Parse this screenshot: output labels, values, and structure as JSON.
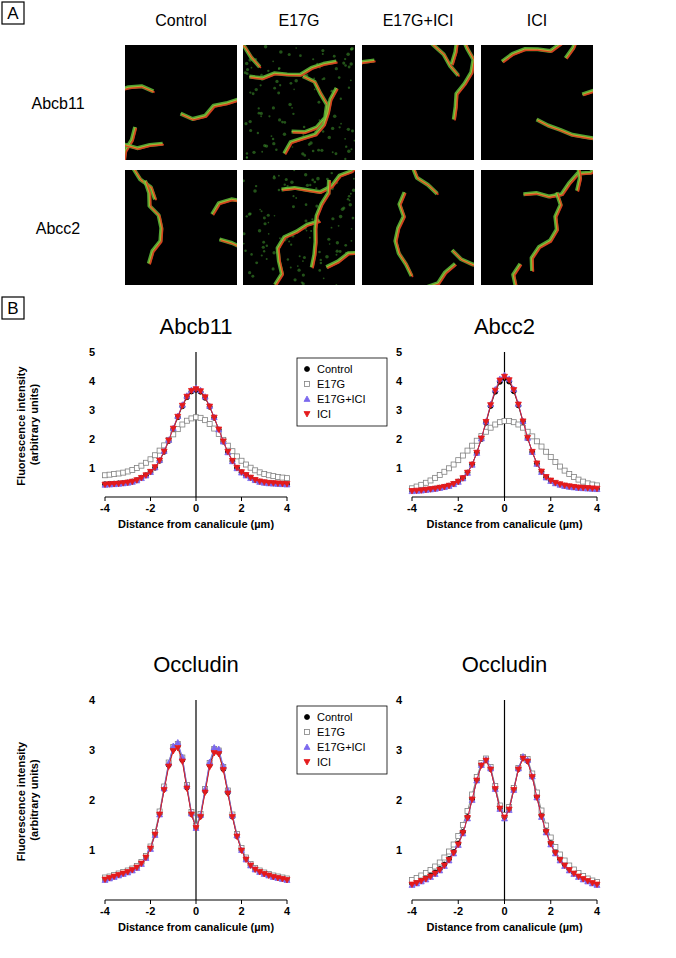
{
  "panel_a": {
    "label": "A",
    "columns": [
      "Control",
      "E17G",
      "E17G+ICI",
      "ICI"
    ],
    "rows": [
      "Abcb11",
      "Abcc2"
    ]
  },
  "panel_b": {
    "label": "B"
  },
  "chart_data": [
    {
      "type": "line",
      "title": "Abcb11",
      "x_label": "Distance from canalicule (µm)",
      "y_label": "Fluorescence intensity (arbitrary units)",
      "legend": "right",
      "xlim": [
        -4,
        4
      ],
      "xticks": [
        -4,
        -2,
        0,
        2,
        4
      ],
      "ylim": [
        0,
        5
      ],
      "yticks": [
        1,
        2,
        3,
        4,
        5
      ],
      "x": [
        -4,
        -3.8,
        -3.6,
        -3.4,
        -3.2,
        -3,
        -2.8,
        -2.6,
        -2.4,
        -2.2,
        -2,
        -1.8,
        -1.6,
        -1.4,
        -1.2,
        -1,
        -0.8,
        -0.6,
        -0.4,
        -0.2,
        0,
        0.2,
        0.4,
        0.6,
        0.8,
        1,
        1.2,
        1.4,
        1.6,
        1.8,
        2,
        2.2,
        2.4,
        2.6,
        2.8,
        3,
        3.2,
        3.4,
        3.6,
        3.8,
        4
      ],
      "series": [
        {
          "name": "Control",
          "color": "#000000",
          "marker": "circle",
          "values": [
            0.44,
            0.45,
            0.46,
            0.47,
            0.48,
            0.5,
            0.53,
            0.58,
            0.66,
            0.75,
            0.86,
            1.01,
            1.25,
            1.56,
            1.93,
            2.34,
            2.75,
            3.13,
            3.44,
            3.64,
            3.7,
            3.63,
            3.42,
            3.11,
            2.73,
            2.32,
            1.91,
            1.55,
            1.24,
            1.0,
            0.85,
            0.75,
            0.66,
            0.58,
            0.53,
            0.5,
            0.48,
            0.47,
            0.46,
            0.45,
            0.44
          ]
        },
        {
          "name": "E17G",
          "color": "#808080",
          "marker": "square",
          "values": [
            0.75,
            0.77,
            0.79,
            0.81,
            0.84,
            0.88,
            0.93,
            1.0,
            1.08,
            1.18,
            1.3,
            1.44,
            1.6,
            1.78,
            1.97,
            2.16,
            2.34,
            2.5,
            2.63,
            2.71,
            2.75,
            2.73,
            2.65,
            2.52,
            2.36,
            2.17,
            1.97,
            1.77,
            1.58,
            1.4,
            1.25,
            1.12,
            1.01,
            0.92,
            0.85,
            0.79,
            0.75,
            0.72,
            0.69,
            0.67,
            0.65
          ]
        },
        {
          "name": "E17G+ICI",
          "color": "#7b68ee",
          "marker": "triangle-up",
          "values": [
            0.42,
            0.43,
            0.44,
            0.45,
            0.47,
            0.49,
            0.52,
            0.57,
            0.65,
            0.74,
            0.86,
            1.02,
            1.27,
            1.59,
            1.97,
            2.38,
            2.79,
            3.18,
            3.49,
            3.69,
            3.76,
            3.68,
            3.46,
            3.14,
            2.75,
            2.33,
            1.91,
            1.54,
            1.23,
            0.99,
            0.84,
            0.74,
            0.65,
            0.58,
            0.52,
            0.49,
            0.47,
            0.46,
            0.45,
            0.44,
            0.43
          ]
        },
        {
          "name": "ICI",
          "color": "#e41a1c",
          "marker": "triangle-down",
          "values": [
            0.43,
            0.44,
            0.45,
            0.46,
            0.48,
            0.5,
            0.53,
            0.58,
            0.66,
            0.75,
            0.87,
            1.03,
            1.26,
            1.57,
            1.95,
            2.36,
            2.77,
            3.15,
            3.46,
            3.66,
            3.72,
            3.65,
            3.44,
            3.12,
            2.74,
            2.33,
            1.92,
            1.56,
            1.25,
            1.01,
            0.86,
            0.76,
            0.67,
            0.59,
            0.54,
            0.51,
            0.49,
            0.48,
            0.47,
            0.46,
            0.45
          ]
        }
      ]
    },
    {
      "type": "line",
      "title": "Abcc2",
      "x_label": "Distance from canalicule (µm)",
      "xlim": [
        -4,
        4
      ],
      "xticks": [
        -4,
        -2,
        0,
        2,
        4
      ],
      "ylim": [
        0,
        5
      ],
      "yticks": [
        1,
        2,
        3,
        4,
        5
      ],
      "x": [
        -4,
        -3.8,
        -3.6,
        -3.4,
        -3.2,
        -3,
        -2.8,
        -2.6,
        -2.4,
        -2.2,
        -2,
        -1.8,
        -1.6,
        -1.4,
        -1.2,
        -1,
        -0.8,
        -0.6,
        -0.4,
        -0.2,
        0,
        0.2,
        0.4,
        0.6,
        0.8,
        1,
        1.2,
        1.4,
        1.6,
        1.8,
        2,
        2.2,
        2.4,
        2.6,
        2.8,
        3,
        3.2,
        3.4,
        3.6,
        3.8,
        4
      ],
      "series": [
        {
          "name": "Control",
          "color": "#000000",
          "marker": "circle",
          "values": [
            0.22,
            0.23,
            0.24,
            0.25,
            0.27,
            0.29,
            0.32,
            0.35,
            0.39,
            0.45,
            0.53,
            0.65,
            0.84,
            1.12,
            1.52,
            2.0,
            2.56,
            3.14,
            3.63,
            3.97,
            4.1,
            3.98,
            3.65,
            3.16,
            2.59,
            2.03,
            1.55,
            1.15,
            0.87,
            0.68,
            0.56,
            0.48,
            0.43,
            0.39,
            0.36,
            0.34,
            0.32,
            0.31,
            0.3,
            0.29,
            0.28
          ]
        },
        {
          "name": "E17G",
          "color": "#808080",
          "marker": "square",
          "values": [
            0.3,
            0.36,
            0.42,
            0.49,
            0.57,
            0.66,
            0.76,
            0.87,
            0.99,
            1.12,
            1.27,
            1.43,
            1.6,
            1.77,
            1.94,
            2.1,
            2.25,
            2.39,
            2.5,
            2.58,
            2.62,
            2.62,
            2.58,
            2.5,
            2.39,
            2.25,
            2.09,
            1.92,
            1.74,
            1.56,
            1.38,
            1.21,
            1.05,
            0.91,
            0.79,
            0.69,
            0.6,
            0.53,
            0.47,
            0.43,
            0.4
          ]
        },
        {
          "name": "E17G+ICI",
          "color": "#7b68ee",
          "marker": "triangle-up",
          "values": [
            0.2,
            0.21,
            0.22,
            0.24,
            0.26,
            0.28,
            0.31,
            0.34,
            0.38,
            0.44,
            0.52,
            0.64,
            0.83,
            1.11,
            1.52,
            2.02,
            2.6,
            3.2,
            3.71,
            4.07,
            4.2,
            4.07,
            3.72,
            3.21,
            2.62,
            2.04,
            1.55,
            1.14,
            0.86,
            0.67,
            0.55,
            0.47,
            0.42,
            0.38,
            0.35,
            0.33,
            0.31,
            0.3,
            0.29,
            0.28,
            0.27
          ]
        },
        {
          "name": "ICI",
          "color": "#e41a1c",
          "marker": "triangle-down",
          "values": [
            0.21,
            0.22,
            0.23,
            0.25,
            0.27,
            0.29,
            0.32,
            0.35,
            0.39,
            0.45,
            0.53,
            0.65,
            0.84,
            1.12,
            1.53,
            2.02,
            2.59,
            3.17,
            3.67,
            4.02,
            4.15,
            4.03,
            3.69,
            3.19,
            2.61,
            2.04,
            1.56,
            1.16,
            0.88,
            0.69,
            0.57,
            0.49,
            0.44,
            0.4,
            0.37,
            0.35,
            0.33,
            0.32,
            0.31,
            0.3,
            0.29
          ]
        }
      ]
    },
    {
      "type": "line",
      "title": "Occludin",
      "x_label": "Distance from canalicule (µm)",
      "y_label": "Fluorescence intensity (arbitrary units)",
      "legend": "right",
      "xlim": [
        -4,
        4
      ],
      "xticks": [
        -4,
        -2,
        0,
        2,
        4
      ],
      "ylim": [
        0,
        4
      ],
      "yticks": [
        1,
        2,
        3,
        4
      ],
      "x": [
        -4,
        -3.8,
        -3.6,
        -3.4,
        -3.2,
        -3,
        -2.8,
        -2.6,
        -2.4,
        -2.2,
        -2,
        -1.8,
        -1.6,
        -1.4,
        -1.2,
        -1,
        -0.8,
        -0.6,
        -0.4,
        -0.2,
        0,
        0.2,
        0.4,
        0.6,
        0.8,
        1,
        1.2,
        1.4,
        1.6,
        1.8,
        2,
        2.2,
        2.4,
        2.6,
        2.8,
        3,
        3.2,
        3.4,
        3.6,
        3.8,
        4
      ],
      "series": [
        {
          "name": "Control",
          "color": "#000000",
          "marker": "circle",
          "values": [
            0.42,
            0.45,
            0.48,
            0.51,
            0.54,
            0.57,
            0.61,
            0.66,
            0.74,
            0.86,
            1.04,
            1.32,
            1.72,
            2.22,
            2.7,
            3.02,
            3.08,
            2.8,
            2.25,
            1.72,
            1.45,
            1.68,
            2.18,
            2.7,
            2.98,
            2.95,
            2.62,
            2.15,
            1.67,
            1.28,
            1.0,
            0.82,
            0.7,
            0.62,
            0.57,
            0.53,
            0.5,
            0.47,
            0.45,
            0.43,
            0.41
          ]
        },
        {
          "name": "E17G",
          "color": "#808080",
          "marker": "square",
          "values": [
            0.45,
            0.47,
            0.5,
            0.53,
            0.56,
            0.59,
            0.63,
            0.68,
            0.76,
            0.88,
            1.07,
            1.36,
            1.77,
            2.27,
            2.75,
            3.06,
            3.12,
            2.85,
            2.3,
            1.76,
            1.48,
            1.72,
            2.22,
            2.74,
            3.02,
            2.99,
            2.66,
            2.19,
            1.71,
            1.32,
            1.04,
            0.85,
            0.72,
            0.64,
            0.59,
            0.55,
            0.52,
            0.49,
            0.47,
            0.45,
            0.43
          ]
        },
        {
          "name": "E17G+ICI",
          "color": "#7b68ee",
          "marker": "triangle-up",
          "values": [
            0.4,
            0.43,
            0.46,
            0.49,
            0.52,
            0.55,
            0.59,
            0.64,
            0.72,
            0.84,
            1.02,
            1.3,
            1.71,
            2.23,
            2.74,
            3.08,
            3.15,
            2.86,
            2.28,
            1.73,
            1.44,
            1.7,
            2.22,
            2.76,
            3.05,
            3.02,
            2.68,
            2.19,
            1.69,
            1.29,
            1.0,
            0.81,
            0.69,
            0.61,
            0.56,
            0.52,
            0.49,
            0.46,
            0.44,
            0.42,
            0.4
          ]
        },
        {
          "name": "ICI",
          "color": "#e41a1c",
          "marker": "triangle-down",
          "values": [
            0.41,
            0.44,
            0.47,
            0.5,
            0.53,
            0.56,
            0.6,
            0.65,
            0.73,
            0.85,
            1.03,
            1.31,
            1.71,
            2.2,
            2.67,
            2.98,
            3.04,
            2.77,
            2.23,
            1.71,
            1.44,
            1.66,
            2.15,
            2.66,
            2.94,
            2.92,
            2.6,
            2.13,
            1.66,
            1.27,
            0.99,
            0.81,
            0.69,
            0.61,
            0.56,
            0.52,
            0.49,
            0.46,
            0.44,
            0.42,
            0.4
          ]
        }
      ]
    },
    {
      "type": "line",
      "title": "Occludin",
      "x_label": "Distance from canalicule (µm)",
      "xlim": [
        -4,
        4
      ],
      "xticks": [
        -4,
        -2,
        0,
        2,
        4
      ],
      "ylim": [
        0,
        4
      ],
      "yticks": [
        1,
        2,
        3,
        4
      ],
      "x": [
        -4,
        -3.8,
        -3.6,
        -3.4,
        -3.2,
        -3,
        -2.8,
        -2.6,
        -2.4,
        -2.2,
        -2,
        -1.8,
        -1.6,
        -1.4,
        -1.2,
        -1,
        -0.8,
        -0.6,
        -0.4,
        -0.2,
        0,
        0.2,
        0.4,
        0.6,
        0.8,
        1,
        1.2,
        1.4,
        1.6,
        1.8,
        2,
        2.2,
        2.4,
        2.6,
        2.8,
        3,
        3.2,
        3.4,
        3.6,
        3.8,
        4
      ],
      "series": [
        {
          "name": "Control",
          "color": "#000000",
          "marker": "circle",
          "values": [
            0.33,
            0.36,
            0.4,
            0.44,
            0.49,
            0.55,
            0.62,
            0.71,
            0.82,
            0.96,
            1.13,
            1.36,
            1.66,
            2.02,
            2.4,
            2.7,
            2.8,
            2.62,
            2.23,
            1.84,
            1.66,
            1.82,
            2.21,
            2.62,
            2.84,
            2.78,
            2.47,
            2.07,
            1.69,
            1.38,
            1.14,
            0.96,
            0.82,
            0.71,
            0.62,
            0.55,
            0.49,
            0.44,
            0.4,
            0.36,
            0.33
          ]
        },
        {
          "name": "E17G",
          "color": "#808080",
          "marker": "square",
          "values": [
            0.4,
            0.44,
            0.49,
            0.54,
            0.6,
            0.67,
            0.75,
            0.85,
            0.97,
            1.11,
            1.28,
            1.5,
            1.78,
            2.11,
            2.46,
            2.74,
            2.83,
            2.66,
            2.28,
            1.89,
            1.7,
            1.86,
            2.24,
            2.64,
            2.86,
            2.82,
            2.53,
            2.15,
            1.79,
            1.49,
            1.25,
            1.06,
            0.91,
            0.79,
            0.69,
            0.61,
            0.54,
            0.48,
            0.43,
            0.39,
            0.36
          ]
        },
        {
          "name": "E17G+ICI",
          "color": "#7b68ee",
          "marker": "triangle-up",
          "values": [
            0.3,
            0.33,
            0.37,
            0.41,
            0.46,
            0.52,
            0.59,
            0.68,
            0.79,
            0.93,
            1.1,
            1.33,
            1.63,
            2.0,
            2.39,
            2.7,
            2.81,
            2.63,
            2.22,
            1.82,
            1.63,
            1.8,
            2.2,
            2.63,
            2.87,
            2.8,
            2.47,
            2.05,
            1.66,
            1.35,
            1.11,
            0.93,
            0.79,
            0.68,
            0.59,
            0.52,
            0.46,
            0.41,
            0.37,
            0.33,
            0.3
          ]
        },
        {
          "name": "ICI",
          "color": "#e41a1c",
          "marker": "triangle-down",
          "values": [
            0.31,
            0.34,
            0.38,
            0.42,
            0.47,
            0.53,
            0.6,
            0.69,
            0.8,
            0.94,
            1.11,
            1.34,
            1.64,
            2.01,
            2.39,
            2.69,
            2.79,
            2.61,
            2.22,
            1.83,
            1.65,
            1.81,
            2.2,
            2.61,
            2.83,
            2.77,
            2.46,
            2.05,
            1.67,
            1.36,
            1.12,
            0.94,
            0.8,
            0.69,
            0.6,
            0.53,
            0.47,
            0.42,
            0.38,
            0.34,
            0.31
          ]
        }
      ]
    }
  ]
}
